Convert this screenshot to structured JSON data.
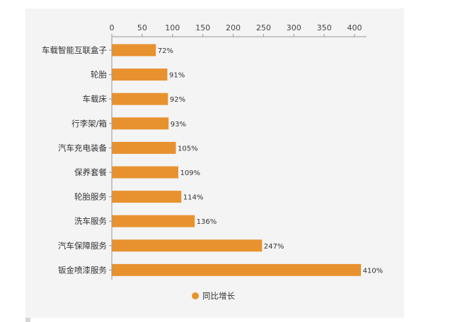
{
  "chart_data": {
    "type": "bar",
    "orientation": "horizontal",
    "categories": [
      "车载智能互联盒子",
      "轮胎",
      "车载床",
      "行李架/箱",
      "汽车充电装备",
      "保养套餐",
      "轮胎服务",
      "洗车服务",
      "汽车保障服务",
      "钣金喷漆服务"
    ],
    "series": [
      {
        "name": "同比增长",
        "values": [
          72,
          91,
          92,
          93,
          105,
          109,
          114,
          136,
          247,
          410
        ],
        "labels": [
          "72%",
          "91%",
          "92%",
          "93%",
          "105%",
          "109%",
          "114%",
          "136%",
          "247%",
          "410%"
        ],
        "color": "#e8922f"
      }
    ],
    "xlim": [
      0,
      420
    ],
    "xticks": [
      "0",
      "50",
      "100",
      "150",
      "200",
      "250",
      "300",
      "350",
      "400"
    ],
    "xtick_values": [
      0,
      50,
      100,
      150,
      200,
      250,
      300,
      350,
      400
    ],
    "x_axis_position": "top",
    "legend_position": "bottom-center",
    "grid": false,
    "title": "",
    "xlabel": "",
    "ylabel": ""
  },
  "colors": {
    "bar": "#e8922f",
    "axis": "#999999",
    "plate_background": "#f4f4f4"
  }
}
